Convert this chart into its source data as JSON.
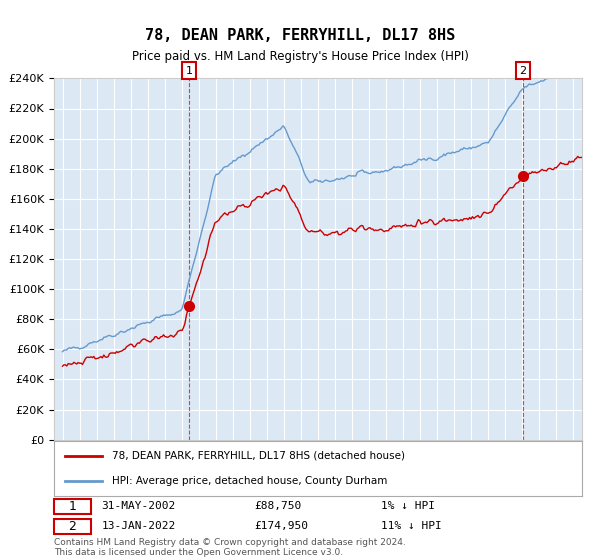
{
  "title": "78, DEAN PARK, FERRYHILL, DL17 8HS",
  "subtitle": "Price paid vs. HM Land Registry's House Price Index (HPI)",
  "legend_line1": "78, DEAN PARK, FERRYHILL, DL17 8HS (detached house)",
  "legend_line2": "HPI: Average price, detached house, County Durham",
  "annotation1_date": "31-MAY-2002",
  "annotation1_price": "£88,750",
  "annotation1_hpi": "1% ↓ HPI",
  "annotation2_date": "13-JAN-2022",
  "annotation2_price": "£174,950",
  "annotation2_hpi": "11% ↓ HPI",
  "footnote": "Contains HM Land Registry data © Crown copyright and database right 2024.\nThis data is licensed under the Open Government Licence v3.0.",
  "sale1_year": 2002.42,
  "sale1_price": 88750,
  "sale2_year": 2022.04,
  "sale2_price": 174950,
  "background_color": "#dce9f5",
  "line_red": "#cc0000",
  "line_blue": "#6699cc",
  "grid_color": "#ffffff",
  "ylim_min": 0,
  "ylim_max": 240000,
  "ytick_step": 20000
}
